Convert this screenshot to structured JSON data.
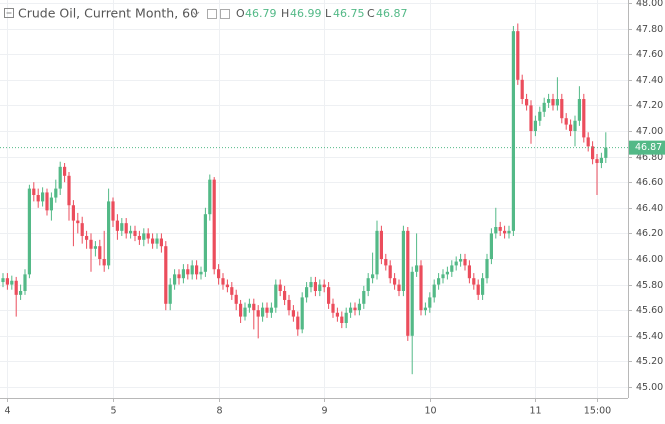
{
  "chart_data": {
    "type": "candlestick",
    "title": "Crude Oil, Current Month, 60",
    "last_ohlc": {
      "labels": [
        "O",
        "H",
        "L",
        "C"
      ],
      "values": [
        46.79,
        46.99,
        46.75,
        46.87
      ]
    },
    "last_price": {
      "value": 46.87,
      "label": "46.87"
    },
    "up_color": "#53b987",
    "down_color": "#eb4d5c",
    "grid": true,
    "ylim": [
      45,
      48
    ],
    "yticks": [
      {
        "value": 45.0,
        "label": "45.00"
      },
      {
        "value": 45.2,
        "label": "45.20"
      },
      {
        "value": 45.4,
        "label": "45.40"
      },
      {
        "value": 45.6,
        "label": "45.60"
      },
      {
        "value": 45.8,
        "label": "45.80"
      },
      {
        "value": 46.0,
        "label": "46.00"
      },
      {
        "value": 46.2,
        "label": "46.20"
      },
      {
        "value": 46.4,
        "label": "46.40"
      },
      {
        "value": 46.6,
        "label": "46.60"
      },
      {
        "value": 46.8,
        "label": "46.80"
      },
      {
        "value": 47.0,
        "label": "47.00"
      },
      {
        "value": 47.2,
        "label": "47.20"
      },
      {
        "value": 47.4,
        "label": "47.40"
      },
      {
        "value": 47.6,
        "label": "47.60"
      },
      {
        "value": 47.8,
        "label": "47.80"
      },
      {
        "value": 48.0,
        "label": "48.00"
      }
    ],
    "x": [
      null,
      "4",
      null,
      null,
      null,
      null,
      null,
      null,
      null,
      null,
      null,
      null,
      null,
      null,
      null,
      null,
      null,
      null,
      null,
      null,
      null,
      null,
      null,
      null,
      null,
      "5",
      null,
      null,
      null,
      null,
      null,
      null,
      null,
      null,
      null,
      null,
      null,
      null,
      null,
      null,
      null,
      null,
      null,
      null,
      null,
      null,
      null,
      null,
      null,
      "8",
      null,
      null,
      null,
      null,
      null,
      null,
      null,
      null,
      null,
      null,
      null,
      null,
      null,
      null,
      null,
      null,
      null,
      null,
      null,
      null,
      null,
      null,
      null,
      "9",
      null,
      null,
      null,
      null,
      null,
      null,
      null,
      null,
      null,
      null,
      null,
      null,
      null,
      null,
      null,
      null,
      null,
      null,
      null,
      null,
      null,
      null,
      null,
      "10",
      null,
      null,
      null,
      null,
      null,
      null,
      null,
      null,
      null,
      null,
      null,
      null,
      null,
      null,
      null,
      null,
      null,
      null,
      null,
      null,
      null,
      null,
      null,
      "11",
      null,
      null,
      null,
      null,
      null,
      null,
      null,
      null,
      null,
      null,
      null,
      null,
      null,
      "15:00",
      null,
      null
    ],
    "open": [
      45.82,
      45.85,
      45.8,
      45.83,
      45.72,
      45.75,
      45.88,
      46.55,
      46.5,
      46.45,
      46.52,
      46.38,
      46.48,
      46.55,
      46.72,
      46.65,
      46.42,
      46.3,
      46.28,
      46.18,
      46.15,
      46.08,
      46.1,
      46.0,
      45.95,
      46.45,
      46.3,
      46.22,
      46.28,
      46.2,
      46.22,
      46.18,
      46.15,
      46.2,
      46.16,
      46.12,
      46.16,
      46.1,
      45.65,
      45.8,
      45.88,
      45.85,
      45.92,
      45.88,
      45.95,
      45.88,
      45.9,
      46.35,
      46.62,
      45.92,
      45.85,
      45.8,
      45.78,
      45.72,
      45.65,
      45.55,
      45.62,
      45.65,
      45.6,
      45.55,
      45.62,
      45.58,
      45.62,
      45.8,
      45.75,
      45.68,
      45.6,
      45.55,
      45.45,
      45.7,
      45.78,
      45.82,
      45.75,
      45.8,
      45.78,
      45.65,
      45.58,
      45.55,
      45.5,
      45.58,
      45.62,
      45.6,
      45.65,
      45.75,
      45.85,
      45.88,
      46.22,
      46.0,
      45.95,
      45.85,
      45.8,
      45.75,
      46.22,
      45.4,
      45.9,
      45.95,
      45.6,
      45.62,
      45.7,
      45.8,
      45.85,
      45.88,
      45.9,
      45.95,
      45.98,
      46.0,
      45.95,
      45.85,
      45.8,
      45.72,
      45.85,
      46.0,
      46.2,
      46.25,
      46.22,
      46.2,
      46.22,
      47.78,
      47.4,
      47.25,
      47.2,
      47.0,
      47.08,
      47.15,
      47.22,
      47.25,
      47.2,
      47.25,
      47.1,
      47.05,
      47.0,
      47.08,
      47.25,
      46.95,
      46.88,
      46.78,
      46.75,
      46.79
    ],
    "high": [
      45.89,
      45.89,
      45.87,
      45.86,
      45.8,
      45.92,
      46.58,
      46.6,
      46.55,
      46.56,
      46.55,
      46.52,
      46.62,
      46.76,
      46.75,
      46.68,
      46.46,
      46.36,
      46.33,
      46.22,
      46.2,
      46.14,
      46.15,
      46.22,
      46.55,
      46.48,
      46.35,
      46.32,
      46.32,
      46.26,
      46.26,
      46.22,
      46.24,
      46.24,
      46.2,
      46.2,
      46.2,
      46.14,
      45.85,
      45.92,
      45.92,
      45.96,
      45.96,
      45.99,
      45.99,
      45.94,
      46.4,
      46.66,
      46.64,
      45.96,
      45.89,
      45.84,
      45.82,
      45.76,
      45.68,
      45.66,
      45.69,
      45.69,
      45.64,
      45.66,
      45.66,
      45.66,
      45.84,
      45.84,
      45.79,
      45.72,
      45.64,
      45.59,
      45.74,
      45.82,
      45.86,
      45.86,
      45.84,
      45.84,
      45.82,
      45.69,
      45.62,
      45.59,
      45.62,
      45.66,
      45.66,
      45.69,
      45.79,
      45.89,
      46.05,
      46.3,
      46.26,
      46.04,
      45.99,
      45.89,
      45.84,
      46.26,
      46.25,
      45.94,
      46.2,
      45.99,
      45.66,
      45.74,
      45.84,
      45.89,
      45.92,
      45.94,
      45.99,
      46.02,
      46.04,
      46.04,
      45.99,
      45.89,
      45.84,
      45.89,
      46.04,
      46.24,
      46.4,
      46.29,
      46.26,
      46.26,
      47.82,
      47.84,
      47.44,
      47.29,
      47.24,
      47.12,
      47.19,
      47.26,
      47.29,
      47.29,
      47.42,
      47.29,
      47.14,
      47.09,
      47.12,
      47.35,
      47.29,
      46.99,
      46.92,
      46.82,
      46.83,
      46.99
    ],
    "low": [
      45.78,
      45.76,
      45.76,
      45.55,
      45.68,
      45.72,
      45.85,
      46.45,
      46.4,
      46.41,
      46.34,
      46.3,
      46.44,
      46.5,
      46.6,
      46.3,
      46.1,
      46.2,
      46.12,
      46.08,
      45.9,
      46.02,
      45.95,
      45.9,
      45.92,
      46.25,
      46.15,
      46.18,
      46.16,
      46.16,
      46.14,
      46.11,
      46.1,
      46.12,
      46.08,
      46.08,
      46.05,
      45.6,
      45.6,
      45.76,
      45.8,
      45.81,
      45.84,
      45.84,
      45.84,
      45.84,
      45.86,
      46.3,
      45.88,
      45.8,
      45.76,
      45.74,
      45.68,
      45.6,
      45.5,
      45.52,
      45.58,
      45.45,
      45.38,
      45.51,
      45.54,
      45.54,
      45.58,
      45.71,
      45.64,
      45.56,
      45.51,
      45.4,
      45.42,
      45.66,
      45.74,
      45.71,
      45.71,
      45.74,
      45.61,
      45.54,
      45.51,
      45.46,
      45.46,
      45.54,
      45.56,
      45.56,
      45.61,
      45.71,
      45.81,
      45.84,
      45.96,
      45.91,
      45.81,
      45.76,
      45.71,
      45.71,
      45.36,
      45.1,
      45.86,
      45.56,
      45.56,
      45.58,
      45.66,
      45.76,
      45.81,
      45.84,
      45.86,
      45.91,
      45.94,
      45.91,
      45.81,
      45.76,
      45.68,
      45.68,
      45.81,
      45.96,
      46.16,
      46.18,
      46.16,
      46.16,
      46.18,
      47.36,
      47.21,
      47.16,
      46.9,
      46.96,
      47.04,
      47.11,
      47.18,
      47.16,
      47.16,
      47.06,
      47.01,
      46.96,
      46.88,
      47.04,
      46.91,
      46.84,
      46.74,
      46.5,
      46.71,
      46.75
    ],
    "close": [
      45.85,
      45.8,
      45.83,
      45.72,
      45.75,
      45.88,
      46.55,
      46.5,
      46.45,
      46.52,
      46.38,
      46.48,
      46.55,
      46.72,
      46.65,
      46.42,
      46.3,
      46.28,
      46.18,
      46.15,
      46.08,
      46.1,
      46.0,
      45.95,
      46.45,
      46.3,
      46.22,
      46.28,
      46.2,
      46.22,
      46.18,
      46.15,
      46.2,
      46.16,
      46.12,
      46.16,
      46.1,
      45.65,
      45.8,
      45.88,
      45.85,
      45.92,
      45.88,
      45.95,
      45.88,
      45.9,
      46.35,
      46.62,
      45.92,
      45.85,
      45.8,
      45.78,
      45.72,
      45.65,
      45.55,
      45.62,
      45.65,
      45.6,
      45.55,
      45.62,
      45.58,
      45.62,
      45.8,
      45.75,
      45.68,
      45.6,
      45.55,
      45.45,
      45.7,
      45.78,
      45.82,
      45.75,
      45.8,
      45.78,
      45.65,
      45.58,
      45.55,
      45.5,
      45.58,
      45.62,
      45.6,
      45.65,
      45.75,
      45.85,
      45.88,
      46.22,
      46.0,
      45.95,
      45.85,
      45.8,
      45.75,
      46.22,
      45.4,
      45.9,
      45.95,
      45.6,
      45.62,
      45.7,
      45.8,
      45.85,
      45.88,
      45.9,
      45.95,
      45.98,
      46.0,
      45.95,
      45.85,
      45.8,
      45.72,
      45.85,
      46.0,
      46.2,
      46.25,
      46.22,
      46.2,
      46.22,
      47.78,
      47.4,
      47.25,
      47.2,
      47.0,
      47.08,
      47.15,
      47.22,
      47.25,
      47.2,
      47.25,
      47.1,
      47.05,
      47.0,
      47.08,
      47.25,
      46.95,
      46.88,
      46.78,
      46.75,
      46.79,
      46.87
    ]
  }
}
